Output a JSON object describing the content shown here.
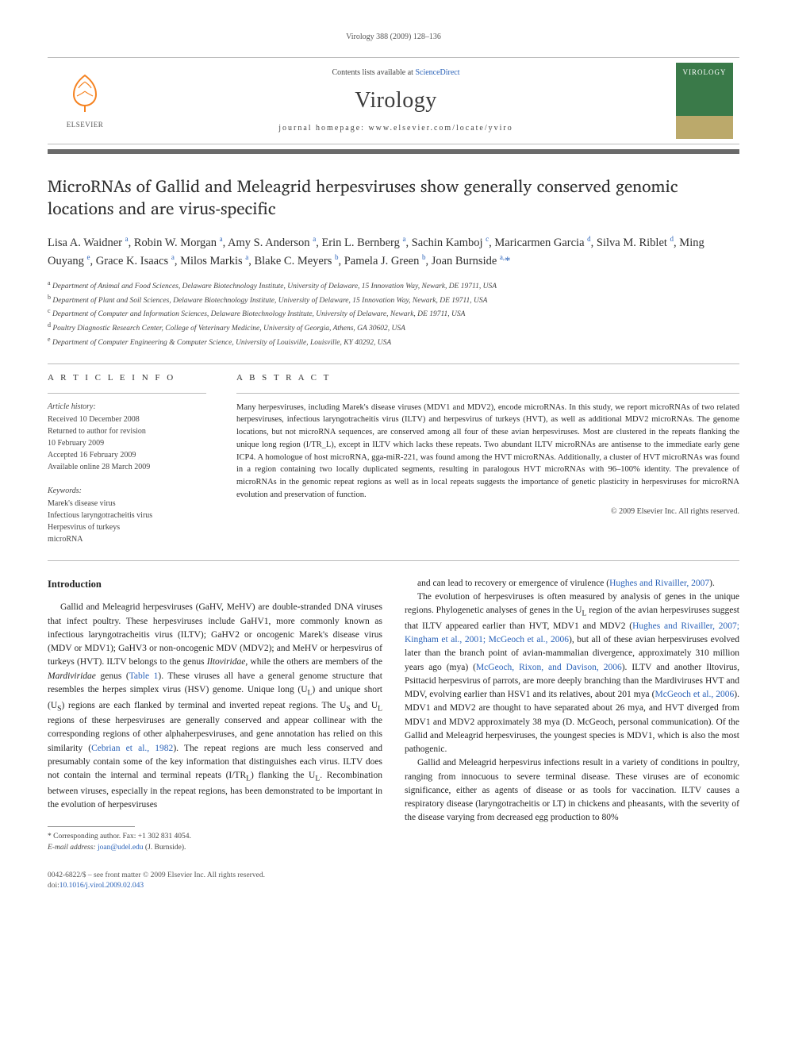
{
  "running_header": "Virology 388 (2009) 128–136",
  "banner": {
    "elsevier_brand": "ELSEVIER",
    "contents_prefix": "Contents lists available at ",
    "contents_link": "ScienceDirect",
    "journal_name": "Virology",
    "homepage_prefix": "journal homepage: ",
    "homepage_url": "www.elsevier.com/locate/yviro",
    "cover_label": "VIROLOGY"
  },
  "article": {
    "title": "MicroRNAs of Gallid and Meleagrid herpesviruses show generally conserved genomic locations and are virus-specific",
    "authors_html": "Lisa A. Waidner <sup>a</sup>, Robin W. Morgan <sup>a</sup>, Amy S. Anderson <sup>a</sup>, Erin L. Bernberg <sup>a</sup>, Sachin Kamboj <sup>c</sup>, Maricarmen Garcia <sup>d</sup>, Silva M. Riblet <sup>d</sup>, Ming Ouyang <sup>e</sup>, Grace K. Isaacs <sup>a</sup>, Milos Markis <sup>a</sup>, Blake C. Meyers <sup>b</sup>, Pamela J. Green <sup>b</sup>, Joan Burnside <sup>a,</sup><span class=\"corr\">*</span>",
    "affiliations": [
      "a Department of Animal and Food Sciences, Delaware Biotechnology Institute, University of Delaware, 15 Innovation Way, Newark, DE 19711, USA",
      "b Department of Plant and Soil Sciences, Delaware Biotechnology Institute, University of Delaware, 15 Innovation Way, Newark, DE 19711, USA",
      "c Department of Computer and Information Sciences, Delaware Biotechnology Institute, University of Delaware, Newark, DE 19711, USA",
      "d Poultry Diagnostic Research Center, College of Veterinary Medicine, University of Georgia, Athens, GA 30602, USA",
      "e Department of Computer Engineering & Computer Science, University of Louisville, Louisville, KY 40292, USA"
    ]
  },
  "article_info": {
    "heading": "A R T I C L E   I N F O",
    "history_label": "Article history:",
    "history": [
      "Received 10 December 2008",
      "Returned to author for revision",
      "10 February 2009",
      "Accepted 16 February 2009",
      "Available online 28 March 2009"
    ],
    "keywords_label": "Keywords:",
    "keywords": [
      "Marek's disease virus",
      "Infectious laryngotracheitis virus",
      "Herpesvirus of turkeys",
      "microRNA"
    ]
  },
  "abstract": {
    "heading": "A B S T R A C T",
    "text": "Many herpesviruses, including Marek's disease viruses (MDV1 and MDV2), encode microRNAs. In this study, we report microRNAs of two related herpesviruses, infectious laryngotracheitis virus (ILTV) and herpesvirus of turkeys (HVT), as well as additional MDV2 microRNAs. The genome locations, but not microRNA sequences, are conserved among all four of these avian herpesviruses. Most are clustered in the repeats flanking the unique long region (I/TR_L), except in ILTV which lacks these repeats. Two abundant ILTV microRNAs are antisense to the immediate early gene ICP4. A homologue of host microRNA, gga-miR-221, was found among the HVT microRNAs. Additionally, a cluster of HVT microRNAs was found in a region containing two locally duplicated segments, resulting in paralogous HVT microRNAs with 96–100% identity. The prevalence of microRNAs in the genomic repeat regions as well as in local repeats suggests the importance of genetic plasticity in herpesviruses for microRNA evolution and preservation of function.",
    "copyright": "© 2009 Elsevier Inc. All rights reserved."
  },
  "body": {
    "intro_heading": "Introduction",
    "col1_p1": "Gallid and Meleagrid herpesviruses (GaHV, MeHV) are double-stranded DNA viruses that infect poultry. These herpesviruses include GaHV1, more commonly known as infectious laryngotracheitis virus (ILTV); GaHV2 or oncogenic Marek's disease virus (MDV or MDV1); GaHV3 or non-oncogenic MDV (MDV2); and MeHV or herpesvirus of turkeys (HVT). ILTV belongs to the genus Iltoviridae, while the others are members of the Mardiviridae genus (Table 1). These viruses all have a general genome structure that resembles the herpes simplex virus (HSV) genome. Unique long (U_L) and unique short (U_S) regions are each flanked by terminal and inverted repeat regions. The U_S and U_L regions of these herpesviruses are generally conserved and appear collinear with the corresponding regions of other alphaherpesviruses, and gene annotation has relied on this similarity (Cebrian et al., 1982). The repeat regions are much less conserved and presumably contain some of the key information that distinguishes each virus. ILTV does not contain the internal and terminal repeats (I/TR_L) flanking the U_L. Recombination between viruses, especially in the repeat regions, has been demonstrated to be important in the evolution of herpesviruses",
    "col2_p1": "and can lead to recovery or emergence of virulence (Hughes and Rivailler, 2007).",
    "col2_p2": "The evolution of herpesviruses is often measured by analysis of genes in the unique regions. Phylogenetic analyses of genes in the U_L region of the avian herpesviruses suggest that ILTV appeared earlier than HVT, MDV1 and MDV2 (Hughes and Rivailler, 2007; Kingham et al., 2001; McGeoch et al., 2006), but all of these avian herpesviruses evolved later than the branch point of avian-mammalian divergence, approximately 310 million years ago (mya) (McGeoch, Rixon, and Davison, 2006). ILTV and another Iltovirus, Psittacid herpesvirus of parrots, are more deeply branching than the Mardiviruses HVT and MDV, evolving earlier than HSV1 and its relatives, about 201 mya (McGeoch et al., 2006). MDV1 and MDV2 are thought to have separated about 26 mya, and HVT diverged from MDV1 and MDV2 approximately 38 mya (D. McGeoch, personal communication). Of the Gallid and Meleagrid herpesviruses, the youngest species is MDV1, which is also the most pathogenic.",
    "col2_p3": "Gallid and Meleagrid herpesvirus infections result in a variety of conditions in poultry, ranging from innocuous to severe terminal disease. These viruses are of economic significance, either as agents of disease or as tools for vaccination. ILTV causes a respiratory disease (laryngotracheitis or LT) in chickens and pheasants, with the severity of the disease varying from decreased egg production to 80%"
  },
  "footnote": {
    "corr_label": "* Corresponding author. Fax: +1 302 831 4054.",
    "email_label": "E-mail address:",
    "email": "joan@udel.edu",
    "email_suffix": "(J. Burnside)."
  },
  "footer": {
    "left_line1": "0042-6822/$ – see front matter © 2009 Elsevier Inc. All rights reserved.",
    "left_line2_prefix": "doi:",
    "doi": "10.1016/j.virol.2009.02.043"
  },
  "colors": {
    "link": "#2a62b8",
    "accent": "#f58220",
    "rule": "#bbbbbb",
    "banner_bar": "#6a6a6a"
  }
}
